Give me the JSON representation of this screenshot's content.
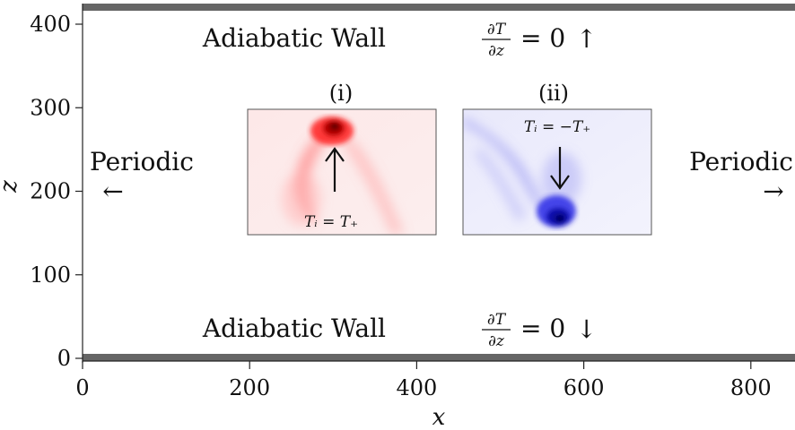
{
  "axes": {
    "xlabel": "x",
    "ylabel": "z",
    "x_ticks": [
      "0",
      "200",
      "400",
      "600",
      "800"
    ],
    "y_ticks": [
      "0",
      "100",
      "200",
      "300",
      "400"
    ],
    "xlim": [
      0,
      850
    ],
    "ylim": [
      0,
      420
    ]
  },
  "walls": {
    "top": {
      "text": "Adiabatic Wall",
      "fraction_num": "∂T",
      "fraction_den": "∂z",
      "equals": "= 0",
      "arrow": "↑"
    },
    "bottom": {
      "text": "Adiabatic Wall",
      "fraction_num": "∂T",
      "fraction_den": "∂z",
      "equals": "= 0",
      "arrow": "↓"
    },
    "color": "#666666"
  },
  "boundaries": {
    "left": {
      "label": "Periodic",
      "arrow": "←"
    },
    "right": {
      "label": "Periodic",
      "arrow": "→"
    }
  },
  "insets": [
    {
      "id": "i",
      "title": "(i)",
      "equation": "Tᵢ = T₊",
      "arrow": "↑",
      "color": "#e41a1c"
    },
    {
      "id": "ii",
      "title": "(ii)",
      "equation": "Tᵢ = −T₊",
      "arrow": "↓",
      "color": "#1f1fd6"
    }
  ]
}
